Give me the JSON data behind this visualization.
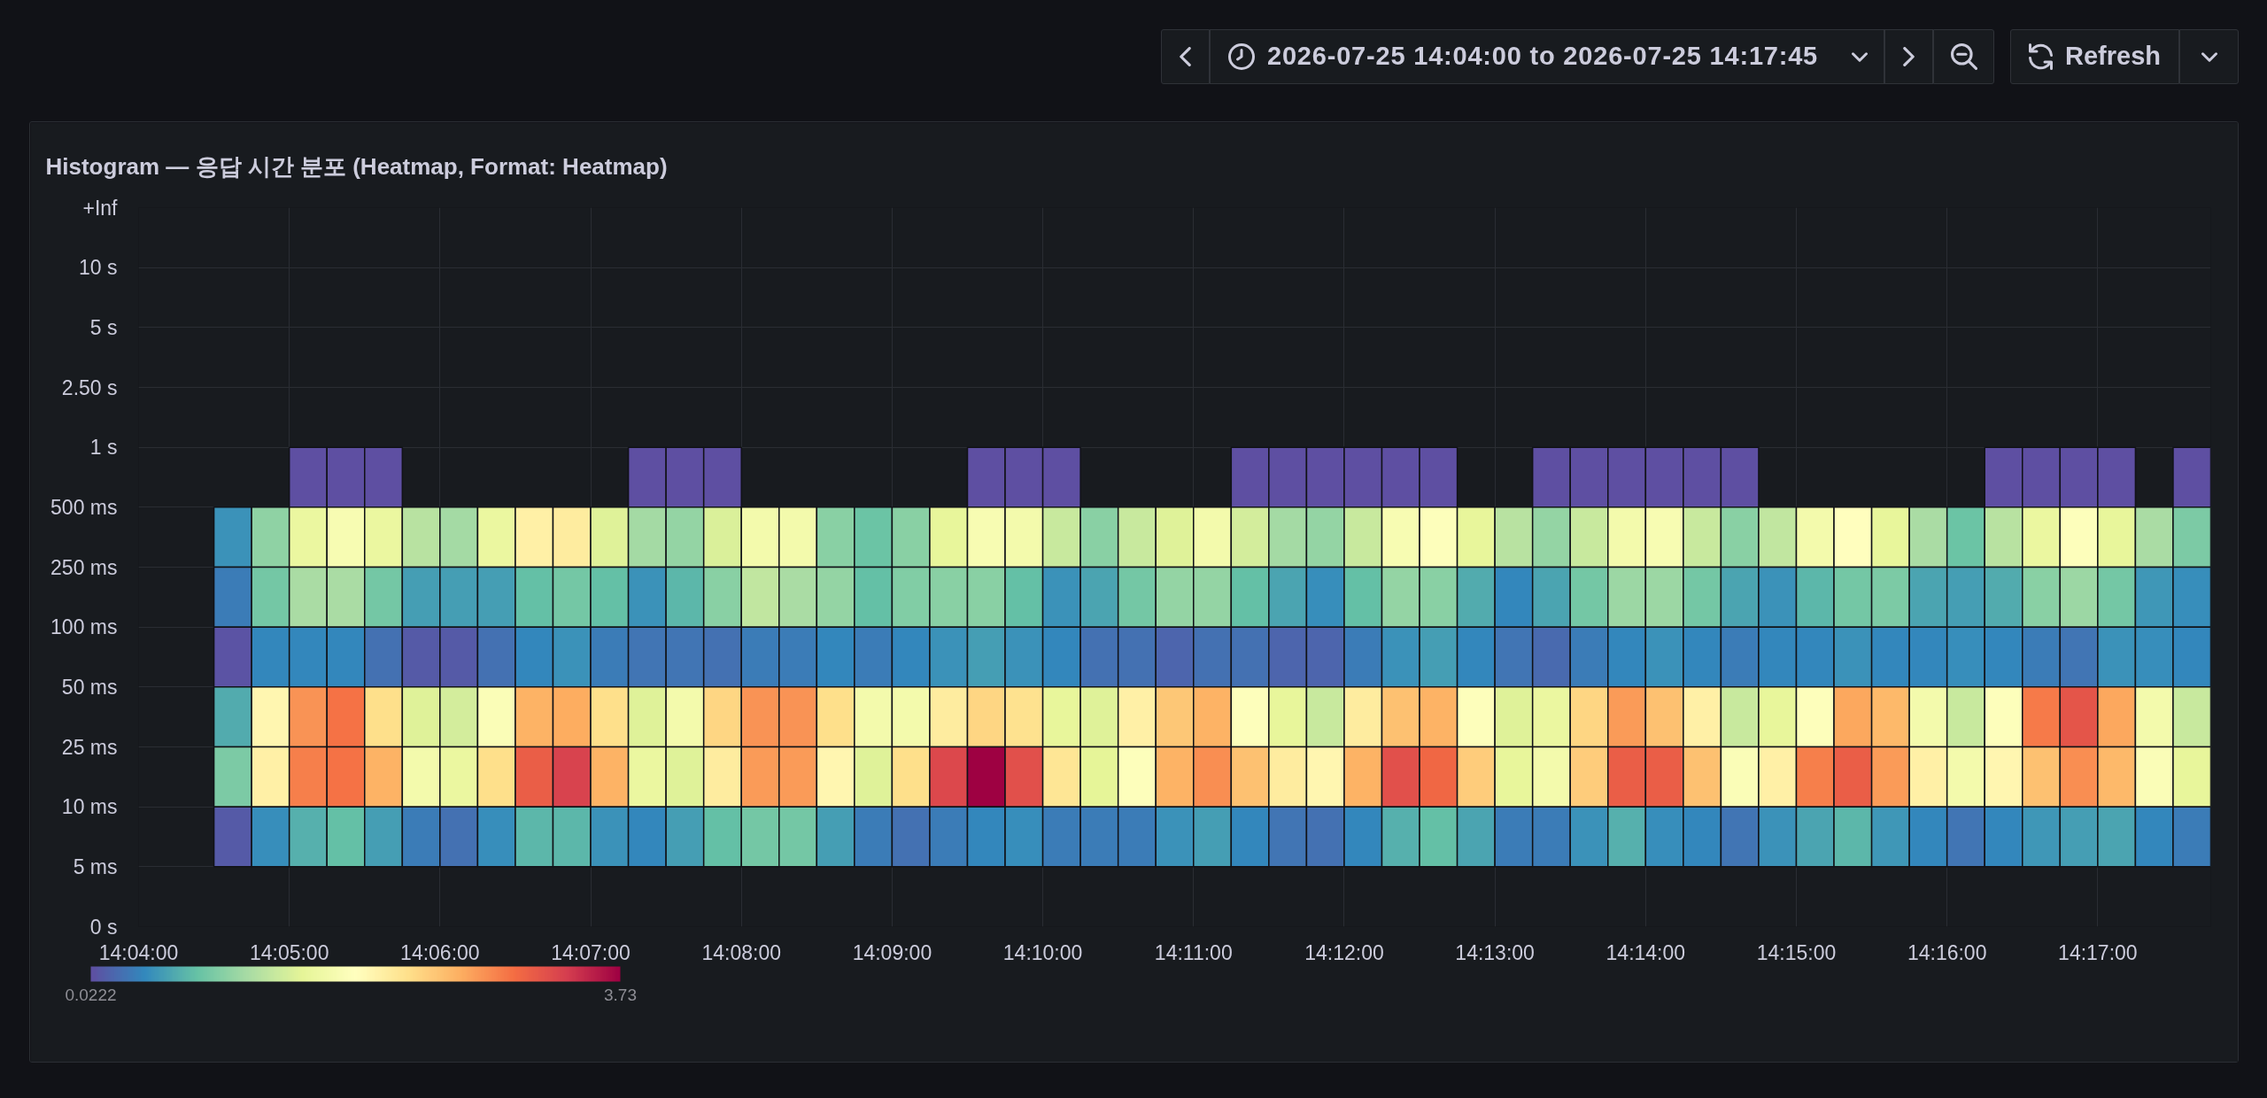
{
  "chart_data": {
    "type": "heatmap",
    "title": "Histogram — 응답 시간 분포 (Heatmap, Format: Heatmap)",
    "annotations": [
      "2026-07-25 14:04:00 to 2026-07-25 14:17:45",
      "Refresh",
      "0 s"
    ],
    "x": [
      "2026-07-25T14:04:37.500",
      "2026-07-25T14:04:52.500",
      "2026-07-25T14:05:07.500",
      "2026-07-25T14:05:22.500",
      "2026-07-25T14:05:37.500",
      "2026-07-25T14:05:52.500",
      "2026-07-25T14:06:07.500",
      "2026-07-25T14:06:22.500",
      "2026-07-25T14:06:37.500",
      "2026-07-25T14:06:52.500",
      "2026-07-25T14:07:07.500",
      "2026-07-25T14:07:22.500",
      "2026-07-25T14:07:37.500",
      "2026-07-25T14:07:52.500",
      "2026-07-25T14:08:07.500",
      "2026-07-25T14:08:22.500",
      "2026-07-25T14:08:37.500",
      "2026-07-25T14:08:52.500",
      "2026-07-25T14:09:07.500",
      "2026-07-25T14:09:22.500",
      "2026-07-25T14:09:37.500",
      "2026-07-25T14:09:52.500",
      "2026-07-25T14:10:07.500",
      "2026-07-25T14:10:22.500",
      "2026-07-25T14:10:37.500",
      "2026-07-25T14:10:52.500",
      "2026-07-25T14:11:07.500",
      "2026-07-25T14:11:22.500",
      "2026-07-25T14:11:37.500",
      "2026-07-25T14:11:52.500",
      "2026-07-25T14:12:07.500",
      "2026-07-25T14:12:22.500",
      "2026-07-25T14:12:37.500",
      "2026-07-25T14:12:52.500",
      "2026-07-25T14:13:07.500",
      "2026-07-25T14:13:22.500",
      "2026-07-25T14:13:37.500",
      "2026-07-25T14:13:52.500",
      "2026-07-25T14:14:07.500",
      "2026-07-25T14:14:22.500",
      "2026-07-25T14:14:37.500",
      "2026-07-25T14:14:52.500",
      "2026-07-25T14:15:07.500",
      "2026-07-25T14:15:22.500",
      "2026-07-25T14:15:37.500",
      "2026-07-25T14:15:52.500",
      "2026-07-25T14:16:07.500",
      "2026-07-25T14:16:22.500",
      "2026-07-25T14:16:37.500",
      "2026-07-25T14:16:52.500",
      "2026-07-25T14:17:07.500",
      "2026-07-25T14:17:22.500",
      "2026-07-25T14:17:37.500"
    ],
    "xlim": [
      "2026-07-25T14:04:00",
      "2026-07-25T14:17:45"
    ],
    "xticks": [
      {
        "value": "2026-07-25T14:04:00",
        "label": "14:04:00"
      },
      {
        "value": "2026-07-25T14:05:00",
        "label": "14:05:00"
      },
      {
        "value": "2026-07-25T14:06:00",
        "label": "14:06:00"
      },
      {
        "value": "2026-07-25T14:07:00",
        "label": "14:07:00"
      },
      {
        "value": "2026-07-25T14:08:00",
        "label": "14:08:00"
      },
      {
        "value": "2026-07-25T14:09:00",
        "label": "14:09:00"
      },
      {
        "value": "2026-07-25T14:10:00",
        "label": "14:10:00"
      },
      {
        "value": "2026-07-25T14:11:00",
        "label": "14:11:00"
      },
      {
        "value": "2026-07-25T14:12:00",
        "label": "14:12:00"
      },
      {
        "value": "2026-07-25T14:13:00",
        "label": "14:13:00"
      },
      {
        "value": "2026-07-25T14:14:00",
        "label": "14:14:00"
      },
      {
        "value": "2026-07-25T14:15:00",
        "label": "14:15:00"
      },
      {
        "value": "2026-07-25T14:16:00",
        "label": "14:16:00"
      },
      {
        "value": "2026-07-25T14:17:00",
        "label": "14:17:00"
      }
    ],
    "y_categories": [
      "+Inf",
      "10 s",
      "5 s",
      "2.50 s",
      "1 s",
      "500 ms",
      "250 ms",
      "100 ms",
      "50 ms",
      "25 ms",
      "10 ms",
      "5 ms"
    ],
    "cells": [
      [
        null,
        null,
        null,
        null,
        null,
        null,
        null,
        null,
        null,
        null,
        null,
        null,
        null,
        null,
        null,
        null,
        null,
        null,
        null,
        null,
        null,
        null,
        null,
        null,
        null,
        null,
        null,
        null,
        null,
        null,
        null,
        null,
        null,
        null,
        null,
        null,
        null,
        null,
        null,
        null,
        null,
        null,
        null,
        null,
        null,
        null,
        null,
        null,
        null,
        null,
        null,
        null,
        null
      ],
      [
        null,
        null,
        null,
        null,
        null,
        null,
        null,
        null,
        null,
        null,
        null,
        null,
        null,
        null,
        null,
        null,
        null,
        null,
        null,
        null,
        null,
        null,
        null,
        null,
        null,
        null,
        null,
        null,
        null,
        null,
        null,
        null,
        null,
        null,
        null,
        null,
        null,
        null,
        null,
        null,
        null,
        null,
        null,
        null,
        null,
        null,
        null,
        null,
        null,
        null,
        null,
        null,
        null
      ],
      [
        null,
        null,
        null,
        null,
        null,
        null,
        null,
        null,
        null,
        null,
        null,
        null,
        null,
        null,
        null,
        null,
        null,
        null,
        null,
        null,
        null,
        null,
        null,
        null,
        null,
        null,
        null,
        null,
        null,
        null,
        null,
        null,
        null,
        null,
        null,
        null,
        null,
        null,
        null,
        null,
        null,
        null,
        null,
        null,
        null,
        null,
        null,
        null,
        null,
        null,
        null,
        null,
        null
      ],
      [
        null,
        null,
        null,
        null,
        null,
        null,
        null,
        null,
        null,
        null,
        null,
        null,
        null,
        null,
        null,
        null,
        null,
        null,
        null,
        null,
        null,
        null,
        null,
        null,
        null,
        null,
        null,
        null,
        null,
        null,
        null,
        null,
        null,
        null,
        null,
        null,
        null,
        null,
        null,
        null,
        null,
        null,
        null,
        null,
        null,
        null,
        null,
        null,
        null,
        null,
        null,
        null,
        null
      ],
      [
        null,
        null,
        0.0222,
        0.0222,
        0.0222,
        null,
        null,
        null,
        null,
        null,
        null,
        0.0222,
        0.0222,
        0.0222,
        null,
        null,
        null,
        null,
        null,
        null,
        0.0222,
        0.0222,
        0.0222,
        null,
        null,
        null,
        null,
        0.0222,
        0.0222,
        0.0222,
        0.0222,
        0.0222,
        0.0222,
        null,
        null,
        0.0222,
        0.0222,
        0.0222,
        0.0222,
        0.0222,
        0.0222,
        null,
        null,
        null,
        null,
        null,
        null,
        0.0222,
        0.0222,
        0.0222,
        0.0222,
        null,
        0.0222
      ],
      [
        0.47,
        0.99,
        1.58,
        1.76,
        1.58,
        1.21,
        1.1,
        1.58,
        2.06,
        2.1,
        1.47,
        1.1,
        1.02,
        1.43,
        1.69,
        1.69,
        0.95,
        0.8,
        0.95,
        1.54,
        1.76,
        1.69,
        1.32,
        0.95,
        1.32,
        1.47,
        1.69,
        1.39,
        1.1,
        1.02,
        1.32,
        1.76,
        1.84,
        1.54,
        1.21,
        1.02,
        1.32,
        1.69,
        1.76,
        1.32,
        0.95,
        1.28,
        1.69,
        1.88,
        1.54,
        1.13,
        0.8,
        1.21,
        1.58,
        1.84,
        1.54,
        1.13,
        0.88
      ],
      [
        0.32,
        0.84,
        1.13,
        1.13,
        0.84,
        0.54,
        0.54,
        0.54,
        0.76,
        0.84,
        0.76,
        0.47,
        0.69,
        0.95,
        1.28,
        1.13,
        1.02,
        0.76,
        0.91,
        0.95,
        0.95,
        0.76,
        0.47,
        0.58,
        0.84,
        1.02,
        1.02,
        0.76,
        0.58,
        0.43,
        0.76,
        1.02,
        0.95,
        0.62,
        0.39,
        0.58,
        0.84,
        1.06,
        1.06,
        0.84,
        0.58,
        0.47,
        0.69,
        0.84,
        0.88,
        0.58,
        0.54,
        0.62,
        0.95,
        1.06,
        0.84,
        0.5,
        0.43
      ],
      [
        0.06,
        0.39,
        0.39,
        0.39,
        0.25,
        0.1,
        0.1,
        0.25,
        0.39,
        0.47,
        0.32,
        0.28,
        0.28,
        0.25,
        0.32,
        0.32,
        0.39,
        0.32,
        0.39,
        0.47,
        0.54,
        0.47,
        0.39,
        0.25,
        0.25,
        0.17,
        0.25,
        0.25,
        0.17,
        0.17,
        0.32,
        0.47,
        0.54,
        0.39,
        0.28,
        0.21,
        0.32,
        0.39,
        0.47,
        0.39,
        0.32,
        0.39,
        0.39,
        0.47,
        0.39,
        0.39,
        0.43,
        0.39,
        0.32,
        0.28,
        0.47,
        0.43,
        0.39
      ],
      [
        0.62,
        1.99,
        2.77,
        2.95,
        2.25,
        1.47,
        1.39,
        1.8,
        2.58,
        2.62,
        2.25,
        1.47,
        1.69,
        2.32,
        2.77,
        2.77,
        2.25,
        1.69,
        1.69,
        2.1,
        2.32,
        2.21,
        1.54,
        1.47,
        2.06,
        2.43,
        2.58,
        1.84,
        1.54,
        1.32,
        2.1,
        2.47,
        2.58,
        1.84,
        1.47,
        1.58,
        2.32,
        2.73,
        2.47,
        2.06,
        1.32,
        1.54,
        1.84,
        2.65,
        2.54,
        1.69,
        1.32,
        1.84,
        2.91,
        3.17,
        2.65,
        1.69,
        1.32
      ],
      [
        0.88,
        2.06,
        2.88,
        2.95,
        2.58,
        1.69,
        1.58,
        2.25,
        3.1,
        3.32,
        2.58,
        1.58,
        1.47,
        2.1,
        2.73,
        2.73,
        1.99,
        1.47,
        2.25,
        3.28,
        3.73,
        3.21,
        2.17,
        1.51,
        1.84,
        2.58,
        2.8,
        2.47,
        2.1,
        1.99,
        2.58,
        3.21,
        3.03,
        2.39,
        1.54,
        1.69,
        2.39,
        3.1,
        3.1,
        2.47,
        1.8,
        2.06,
        2.88,
        3.1,
        2.73,
        2.06,
        1.69,
        1.99,
        2.47,
        2.8,
        2.54,
        1.8,
        1.54
      ],
      [
        0.1,
        0.43,
        0.65,
        0.76,
        0.54,
        0.32,
        0.25,
        0.43,
        0.69,
        0.69,
        0.47,
        0.39,
        0.54,
        0.76,
        0.84,
        0.84,
        0.54,
        0.32,
        0.25,
        0.32,
        0.39,
        0.43,
        0.32,
        0.32,
        0.32,
        0.47,
        0.54,
        0.39,
        0.28,
        0.25,
        0.39,
        0.65,
        0.76,
        0.58,
        0.32,
        0.32,
        0.47,
        0.65,
        0.43,
        0.39,
        0.28,
        0.47,
        0.58,
        0.69,
        0.5,
        0.39,
        0.28,
        0.39,
        0.5,
        0.54,
        0.58,
        0.39,
        0.32
      ],
      [
        null,
        null,
        null,
        null,
        null,
        null,
        null,
        null,
        null,
        null,
        null,
        null,
        null,
        null,
        null,
        null,
        null,
        null,
        null,
        null,
        null,
        null,
        null,
        null,
        null,
        null,
        null,
        null,
        null,
        null,
        null,
        null,
        null,
        null,
        null,
        null,
        null,
        null,
        null,
        null,
        null,
        null,
        null,
        null,
        null,
        null,
        null,
        null,
        null,
        null,
        null,
        null,
        null
      ]
    ],
    "clim": [
      0.0222,
      3.73
    ],
    "cticks": [
      0.0222,
      3.73
    ],
    "grid": true
  }
}
